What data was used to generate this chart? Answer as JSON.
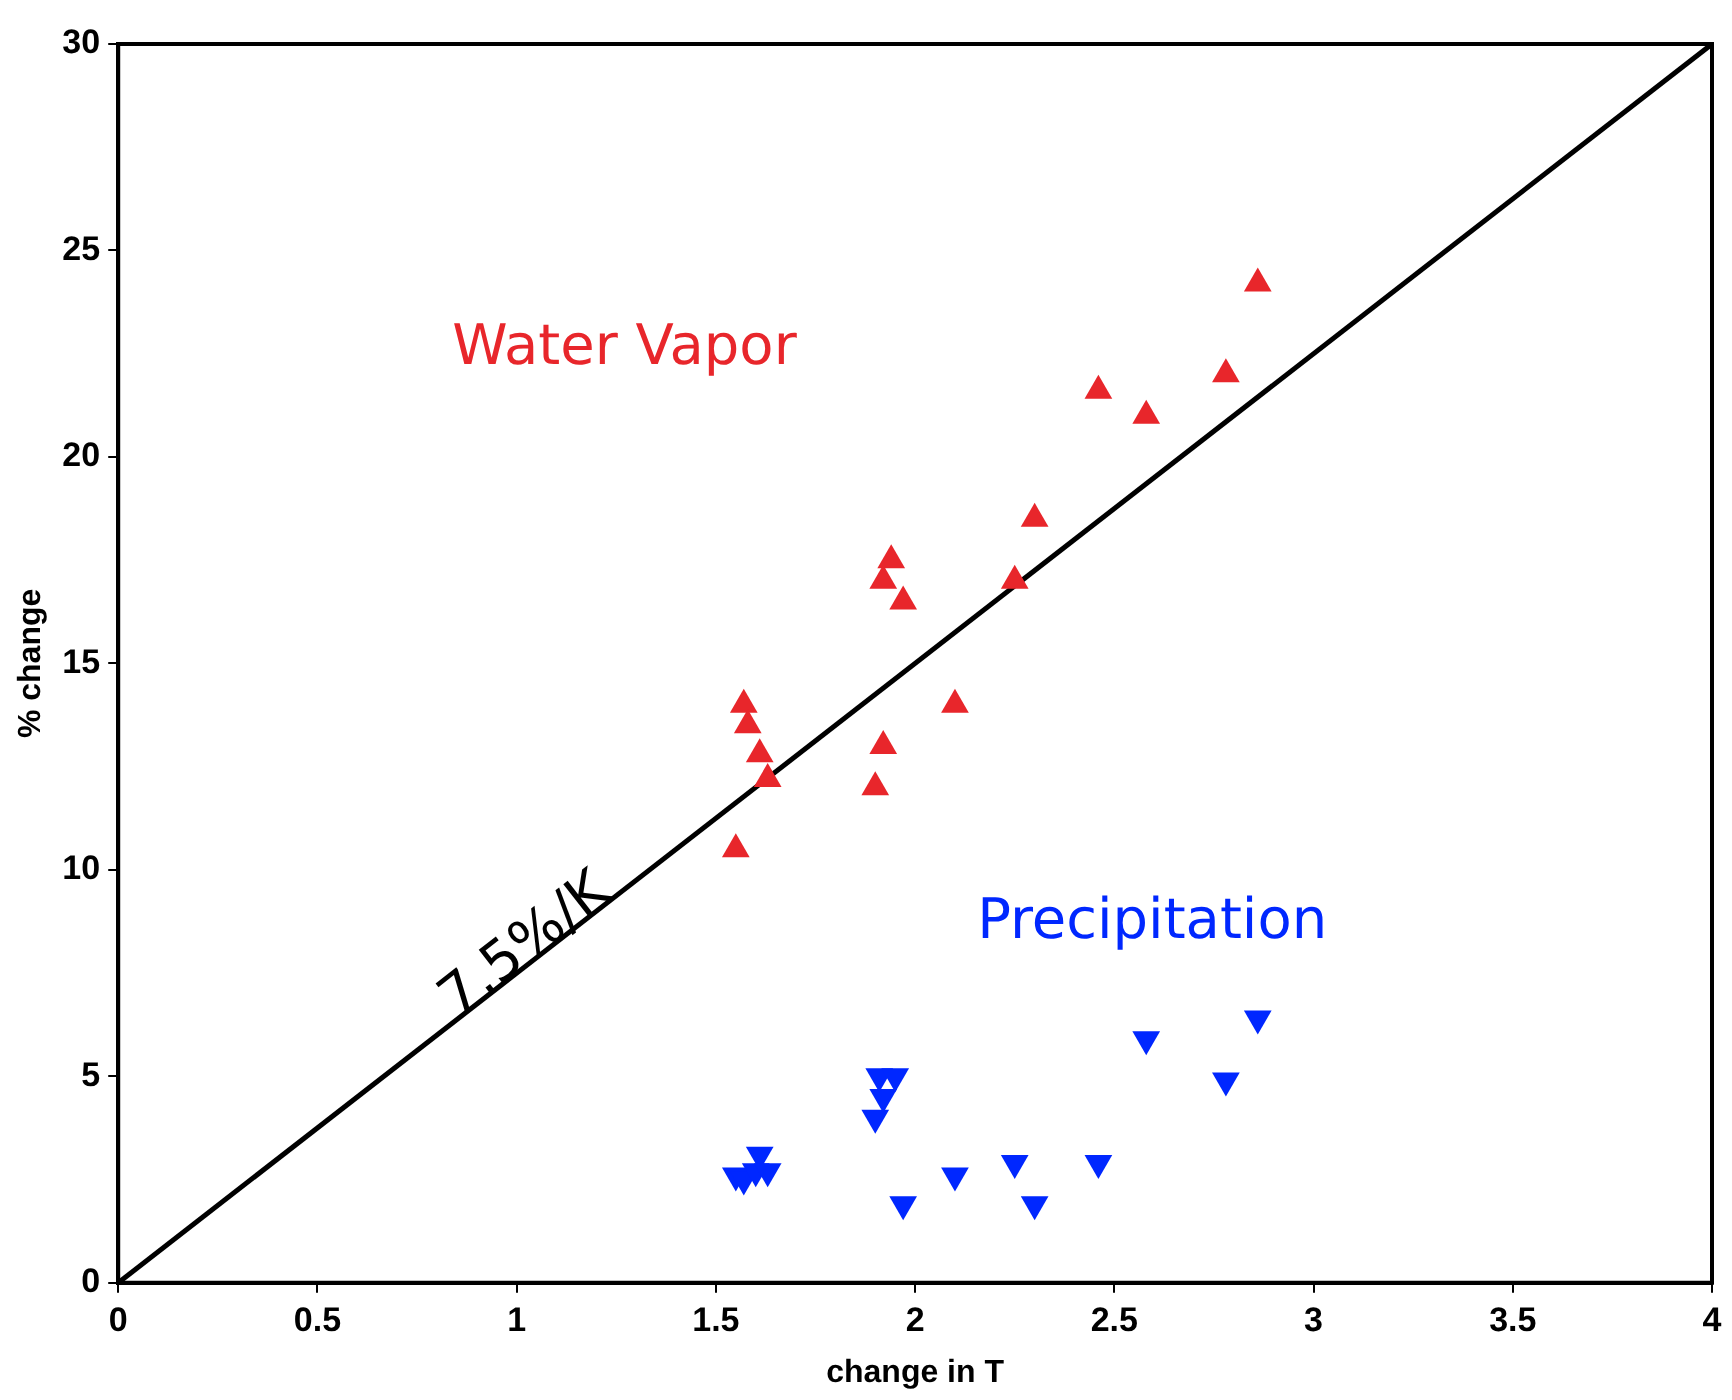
{
  "chart_data": {
    "type": "scatter",
    "xlabel": "change in T",
    "ylabel": "% change",
    "xlim": [
      0,
      4
    ],
    "ylim": [
      0,
      30
    ],
    "xticks": [
      0,
      0.5,
      1,
      1.5,
      2,
      2.5,
      3,
      3.5,
      4
    ],
    "yticks": [
      0,
      5,
      10,
      15,
      20,
      25,
      30
    ],
    "grid": false,
    "legend": false,
    "series": [
      {
        "name": "Water Vapor",
        "color": "#e8262b",
        "marker": "triangle",
        "x": [
          1.55,
          1.57,
          1.58,
          1.61,
          1.63,
          1.9,
          1.92,
          1.92,
          1.94,
          1.97,
          2.1,
          2.25,
          2.3,
          2.46,
          2.58,
          2.78,
          2.86
        ],
        "values": [
          10.5,
          14,
          13.5,
          12.8,
          12.2,
          12,
          13,
          17,
          17.5,
          16.5,
          14,
          17,
          18.5,
          21.6,
          21,
          22,
          24.2
        ]
      },
      {
        "name": "Precipitation",
        "color": "#0027ff",
        "marker": "triangle_down",
        "x": [
          1.55,
          1.57,
          1.6,
          1.61,
          1.63,
          1.9,
          1.92,
          1.91,
          1.95,
          1.97,
          2.1,
          2.25,
          2.3,
          2.46,
          2.58,
          2.78,
          2.86
        ],
        "values": [
          2.6,
          2.5,
          2.7,
          3.1,
          2.7,
          4,
          4.5,
          5,
          5,
          1.9,
          2.6,
          2.9,
          1.9,
          2.9,
          5.9,
          4.9,
          6.4
        ]
      },
      {
        "type": "line",
        "color": "#000000",
        "marker": "none",
        "line_style": "solid",
        "x": [
          0,
          4
        ],
        "values": [
          0,
          30
        ]
      }
    ],
    "annotations": [
      {
        "text": "7.5%/K",
        "x": 0.85,
        "y": 6.4
      }
    ]
  }
}
